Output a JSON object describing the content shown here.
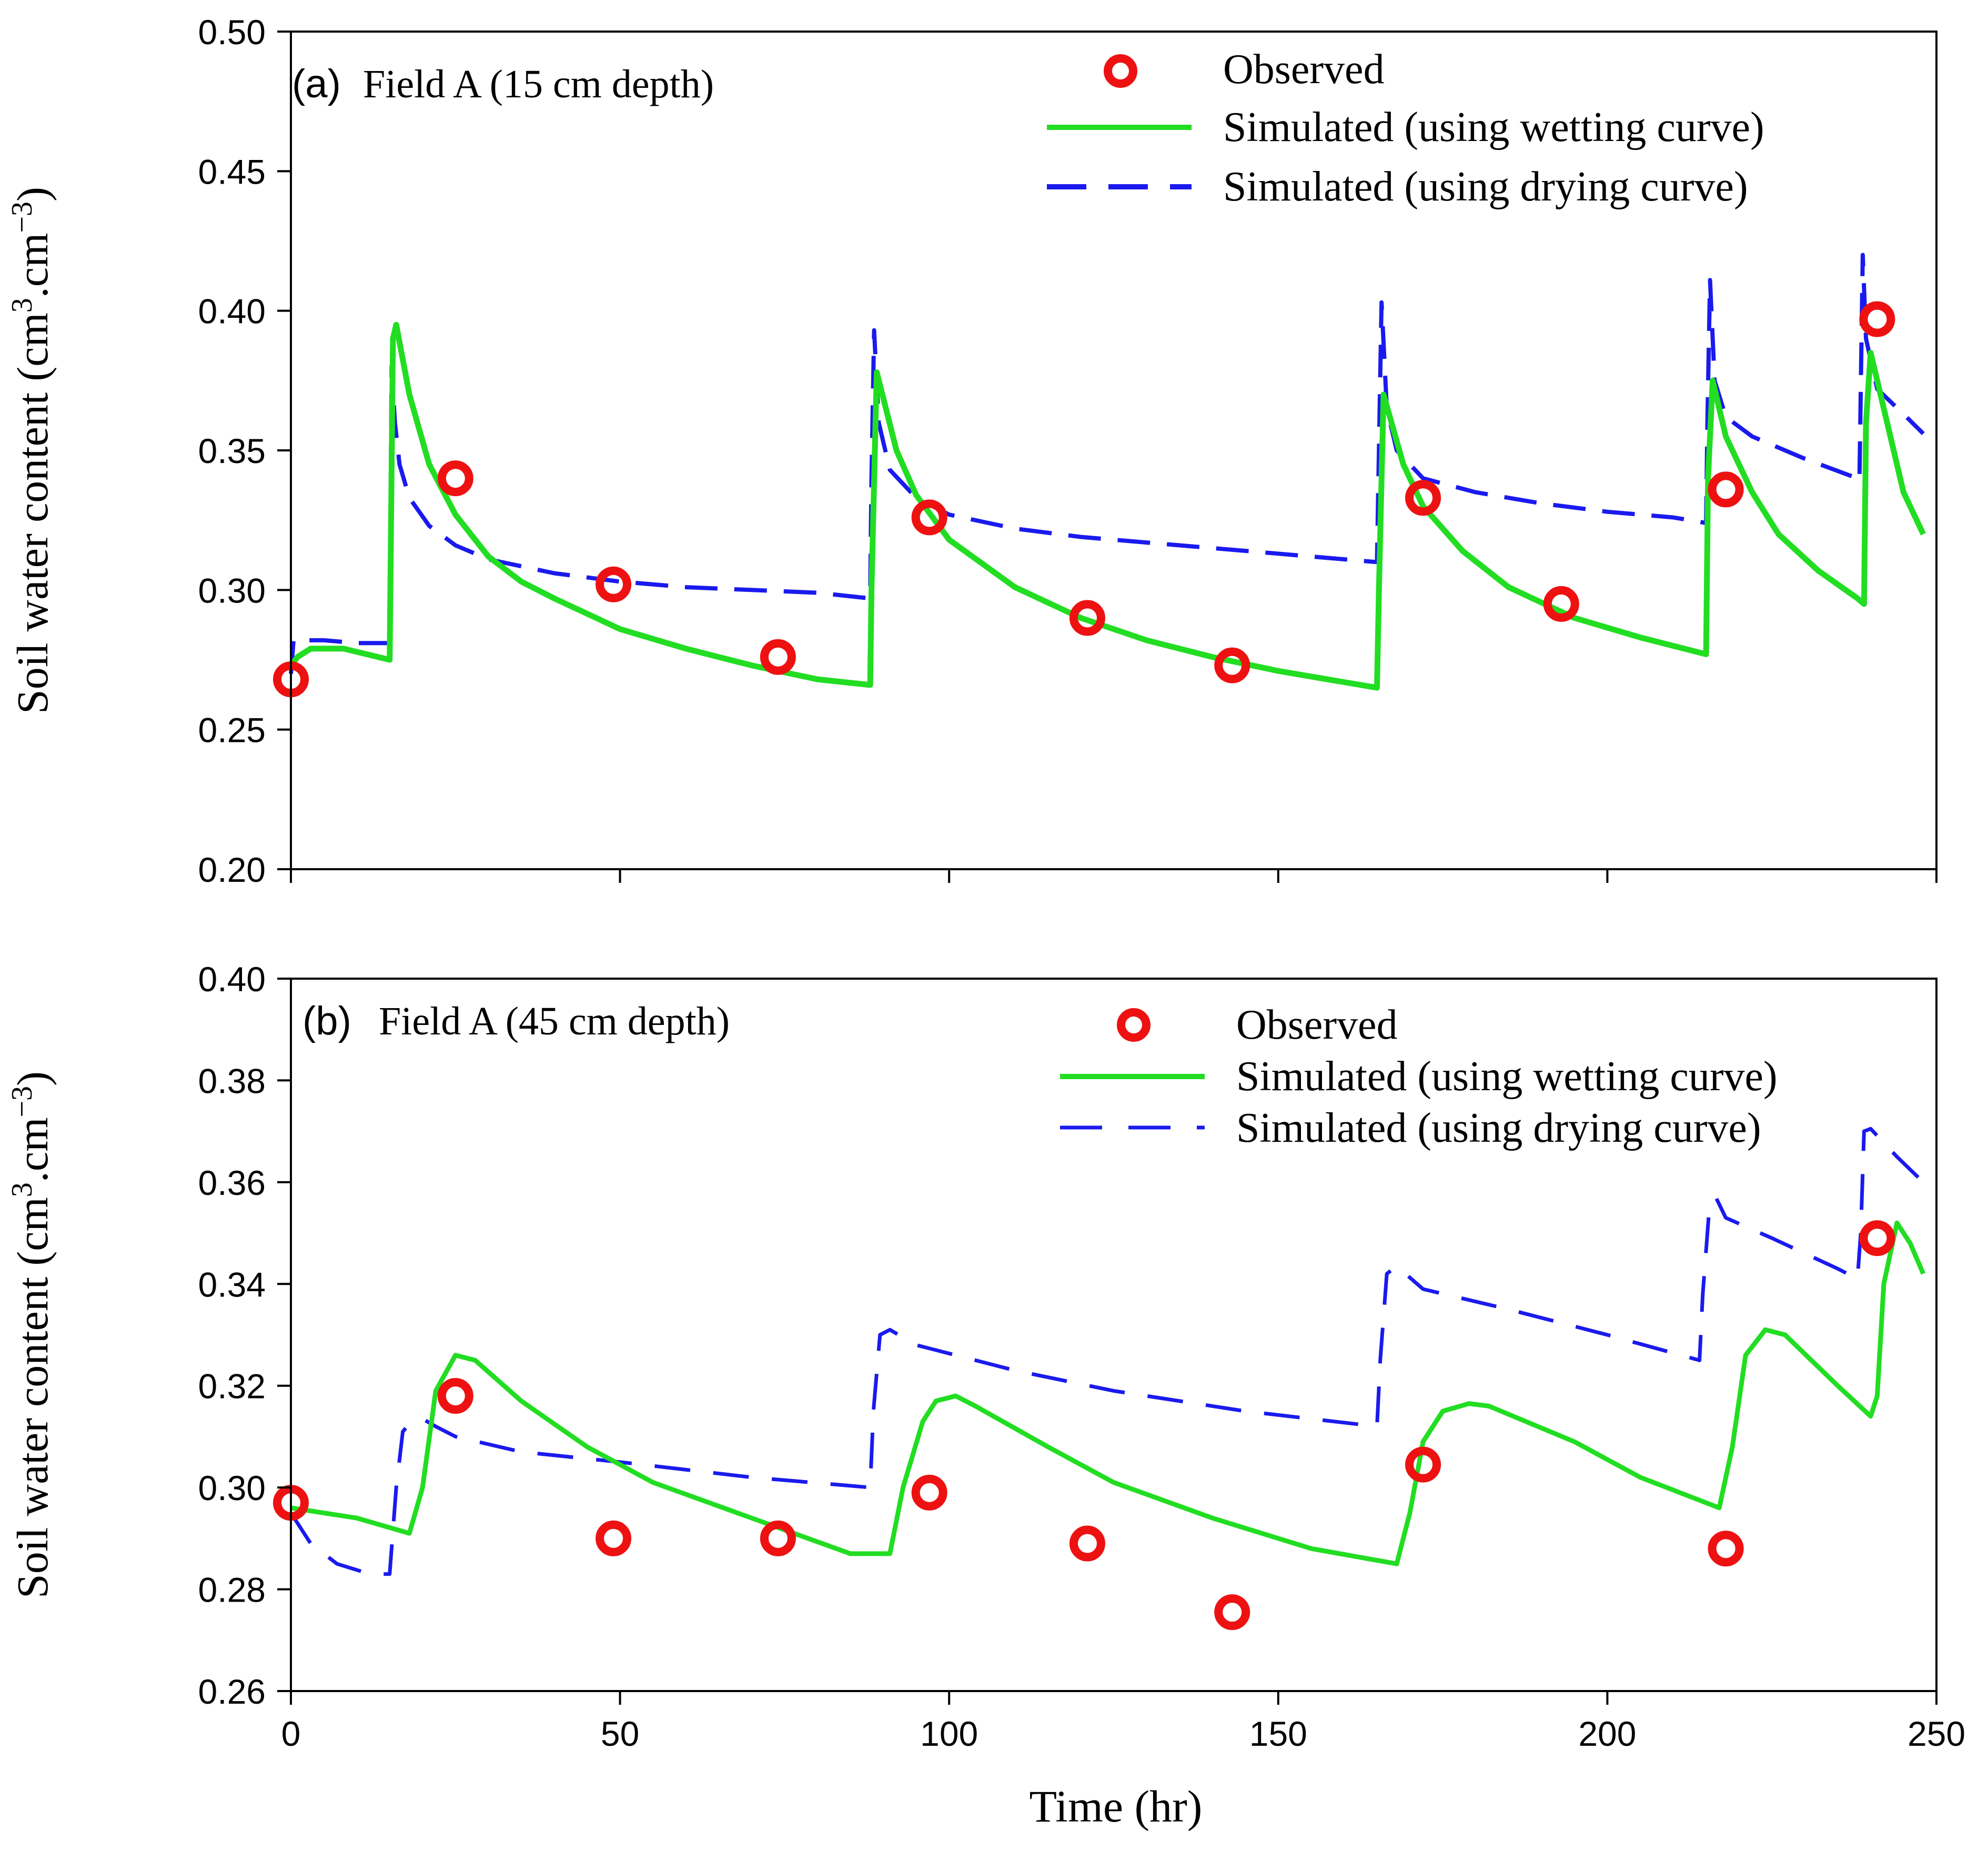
{
  "figure": {
    "x_label": "Time (hr)"
  },
  "chart_data": [
    {
      "type": "line",
      "panel_tag": "(a)",
      "title": "Field A (15 cm depth)",
      "xlabel": "Time (hr)",
      "ylabel": "Soil water content (cm³.cm⁻³)",
      "ylabel_parts": [
        "Soil water content (cm",
        "3",
        ".cm",
        "−3",
        ")"
      ],
      "xlim": [
        0,
        250
      ],
      "ylim": [
        0.2,
        0.5
      ],
      "xticks": [
        0,
        50,
        100,
        150,
        200,
        250
      ],
      "yticks": [
        0.2,
        0.25,
        0.3,
        0.35,
        0.4,
        0.45,
        0.5
      ],
      "ytick_labels": [
        "0.20",
        "0.25",
        "0.30",
        "0.35",
        "0.40",
        "0.45",
        "0.50"
      ],
      "show_xtick_labels": false,
      "grid": false,
      "legend_position": "top-right",
      "series": [
        {
          "name": "Observed",
          "kind": "scatter",
          "color": "#ee1111",
          "x": [
            0,
            25,
            49,
            74,
            97,
            121,
            143,
            172,
            193,
            218,
            241
          ],
          "y": [
            0.268,
            0.34,
            0.302,
            0.276,
            0.326,
            0.29,
            0.273,
            0.333,
            0.295,
            0.336,
            0.397
          ]
        },
        {
          "name": "Simulated (using wetting curve)",
          "kind": "line",
          "color": "#22dd22",
          "dash": "solid",
          "x": [
            0,
            1,
            3,
            8,
            15,
            15.5,
            16,
            18,
            21,
            25,
            30,
            35,
            40,
            50,
            60,
            70,
            80,
            88,
            88.2,
            89,
            92,
            95,
            100,
            110,
            120,
            130,
            140,
            150,
            160,
            165,
            165.3,
            166,
            169,
            172,
            178,
            185,
            195,
            205,
            215,
            215.3,
            216,
            218,
            222,
            226,
            232,
            238,
            239,
            239.3,
            240,
            242,
            245,
            248
          ],
          "y": [
            0.273,
            0.276,
            0.279,
            0.279,
            0.275,
            0.39,
            0.395,
            0.37,
            0.345,
            0.327,
            0.312,
            0.303,
            0.297,
            0.286,
            0.279,
            0.273,
            0.268,
            0.266,
            0.3,
            0.378,
            0.35,
            0.334,
            0.318,
            0.301,
            0.29,
            0.282,
            0.276,
            0.271,
            0.267,
            0.265,
            0.3,
            0.37,
            0.345,
            0.33,
            0.314,
            0.301,
            0.29,
            0.283,
            0.277,
            0.34,
            0.375,
            0.355,
            0.335,
            0.32,
            0.307,
            0.297,
            0.295,
            0.36,
            0.385,
            0.365,
            0.335,
            0.32
          ]
        },
        {
          "name": "Simulated (using drying curve)",
          "kind": "line",
          "color": "#1a1aee",
          "dash": "dashed",
          "x": [
            0,
            0.4,
            1,
            5,
            10,
            15,
            15.3,
            15.8,
            16.5,
            18,
            21,
            25,
            30,
            40,
            50,
            60,
            70,
            80,
            88,
            88.2,
            88.6,
            89.3,
            91,
            95,
            100,
            110,
            120,
            130,
            140,
            150,
            160,
            165,
            165.3,
            165.7,
            166.5,
            168,
            172,
            180,
            190,
            200,
            210,
            215,
            215.2,
            215.6,
            216.3,
            218,
            222,
            230,
            238,
            238.3,
            238.8,
            239.3,
            241,
            245,
            248
          ],
          "y": [
            0.27,
            0.282,
            0.282,
            0.282,
            0.281,
            0.281,
            0.38,
            0.36,
            0.345,
            0.333,
            0.323,
            0.316,
            0.311,
            0.306,
            0.303,
            0.301,
            0.3,
            0.299,
            0.297,
            0.34,
            0.393,
            0.36,
            0.343,
            0.333,
            0.327,
            0.322,
            0.319,
            0.317,
            0.315,
            0.313,
            0.311,
            0.31,
            0.35,
            0.403,
            0.365,
            0.35,
            0.34,
            0.335,
            0.331,
            0.328,
            0.326,
            0.324,
            0.36,
            0.411,
            0.375,
            0.362,
            0.355,
            0.347,
            0.34,
            0.339,
            0.42,
            0.39,
            0.372,
            0.363,
            0.356
          ]
        }
      ]
    },
    {
      "type": "line",
      "panel_tag": "(b)",
      "title": "Field A (45 cm depth)",
      "xlabel": "Time (hr)",
      "ylabel": "Soil water content (cm³.cm⁻³)",
      "ylabel_parts": [
        "Soil water content (cm",
        "3",
        ".cm",
        "−3",
        ")"
      ],
      "xlim": [
        0,
        250
      ],
      "ylim": [
        0.26,
        0.4
      ],
      "xticks": [
        0,
        50,
        100,
        150,
        200,
        250
      ],
      "xtick_labels": [
        "0",
        "50",
        "100",
        "150",
        "200",
        "250"
      ],
      "yticks": [
        0.26,
        0.28,
        0.3,
        0.32,
        0.34,
        0.36,
        0.38,
        0.4
      ],
      "ytick_labels": [
        "0.26",
        "0.28",
        "0.30",
        "0.32",
        "0.34",
        "0.36",
        "0.38",
        "0.40"
      ],
      "show_xtick_labels": true,
      "grid": false,
      "legend_position": "top-right",
      "series": [
        {
          "name": "Observed",
          "kind": "scatter",
          "color": "#ee1111",
          "x": [
            0,
            25,
            49,
            74,
            97,
            121,
            143,
            172,
            218,
            241
          ],
          "y": [
            0.297,
            0.318,
            0.29,
            0.29,
            0.299,
            0.289,
            0.2755,
            0.3045,
            0.288,
            0.349
          ]
        },
        {
          "name": "Simulated (using wetting curve)",
          "kind": "line",
          "color": "#22dd22",
          "dash": "solid",
          "x": [
            0,
            10,
            18,
            20,
            22,
            25,
            28,
            35,
            45,
            55,
            70,
            85,
            91,
            93,
            96,
            98,
            101,
            104,
            115,
            125,
            140,
            155,
            168,
            170,
            172,
            175,
            179,
            182,
            195,
            205,
            217,
            219,
            221,
            224,
            227,
            235,
            240,
            241,
            242,
            244,
            246,
            248
          ],
          "y": [
            0.296,
            0.294,
            0.291,
            0.3,
            0.319,
            0.326,
            0.325,
            0.317,
            0.308,
            0.301,
            0.294,
            0.287,
            0.287,
            0.3,
            0.313,
            0.317,
            0.318,
            0.316,
            0.308,
            0.301,
            0.294,
            0.288,
            0.285,
            0.295,
            0.309,
            0.315,
            0.3165,
            0.316,
            0.309,
            0.302,
            0.296,
            0.308,
            0.326,
            0.331,
            0.33,
            0.32,
            0.314,
            0.318,
            0.34,
            0.352,
            0.348,
            0.342
          ]
        },
        {
          "name": "Simulated (using drying curve)",
          "kind": "line",
          "color": "#1a1aee",
          "dash": "dashed",
          "x": [
            0,
            3,
            7,
            12,
            15,
            16,
            17,
            18,
            20,
            22,
            25,
            35,
            50,
            70,
            88,
            88.5,
            89.5,
            91,
            95,
            110,
            125,
            145,
            165,
            165.5,
            166.5,
            168,
            172,
            185,
            200,
            214,
            214.5,
            215.5,
            216.5,
            218,
            225,
            235,
            238,
            238.5,
            239,
            240,
            244,
            248
          ],
          "y": [
            0.295,
            0.289,
            0.285,
            0.283,
            0.283,
            0.3,
            0.311,
            0.3125,
            0.3135,
            0.312,
            0.31,
            0.307,
            0.305,
            0.302,
            0.3,
            0.315,
            0.33,
            0.331,
            0.328,
            0.323,
            0.319,
            0.315,
            0.312,
            0.325,
            0.342,
            0.3435,
            0.339,
            0.335,
            0.33,
            0.325,
            0.338,
            0.355,
            0.357,
            0.353,
            0.349,
            0.343,
            0.341,
            0.35,
            0.37,
            0.3705,
            0.365,
            0.36
          ]
        }
      ]
    }
  ]
}
